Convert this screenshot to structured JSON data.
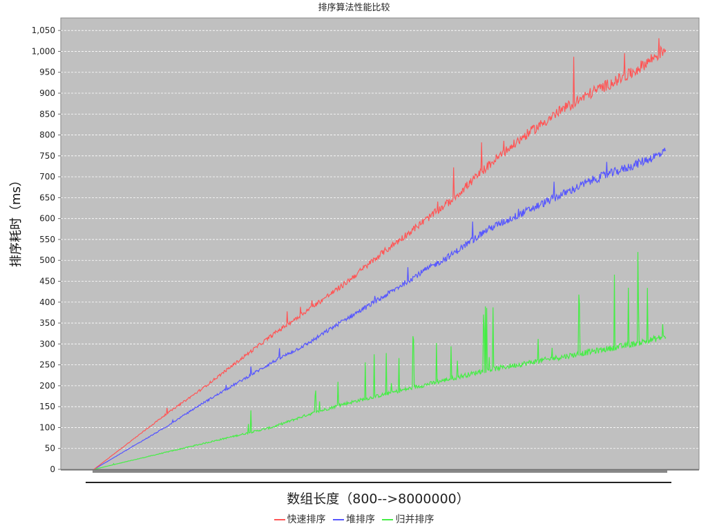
{
  "chart_data": {
    "type": "line",
    "title": "排序算法性能比较",
    "xlabel": "数组长度（800-->8000000）",
    "ylabel": "排序耗时（ms）",
    "ylim": [
      0,
      1080
    ],
    "yticks": [
      0,
      50,
      100,
      150,
      200,
      250,
      300,
      350,
      400,
      450,
      500,
      550,
      600,
      650,
      700,
      750,
      800,
      850,
      900,
      950,
      1000,
      1050
    ],
    "ytick_labels": [
      "0",
      "50",
      "100",
      "150",
      "200",
      "250",
      "300",
      "350",
      "400",
      "450",
      "500",
      "550",
      "600",
      "650",
      "700",
      "750",
      "800",
      "850",
      "900",
      "950",
      "1,000",
      "1,050"
    ],
    "x_range": [
      800,
      8000000
    ],
    "grid": true,
    "legend_position": "bottom",
    "background_color": "#c0c0c0",
    "series": [
      {
        "name": "快速排序",
        "color": "#ff5555",
        "x": [
          800,
          500000,
          1000000,
          1500000,
          2000000,
          2500000,
          3000000,
          3500000,
          4000000,
          4500000,
          5000000,
          5500000,
          6000000,
          6500000,
          7000000,
          7500000,
          8000000
        ],
        "values": [
          0,
          65,
          130,
          190,
          255,
          320,
          380,
          440,
          510,
          575,
          640,
          720,
          790,
          850,
          900,
          940,
          1000
        ]
      },
      {
        "name": "堆排序",
        "color": "#5555ff",
        "x": [
          800,
          500000,
          1000000,
          1500000,
          2000000,
          2500000,
          3000000,
          3500000,
          4000000,
          4500000,
          5000000,
          5500000,
          6000000,
          6500000,
          7000000,
          7500000,
          8000000
        ],
        "values": [
          0,
          50,
          100,
          155,
          205,
          255,
          300,
          355,
          405,
          460,
          510,
          570,
          610,
          650,
          690,
          720,
          755
        ]
      },
      {
        "name": "归并排序",
        "color": "#44ee44",
        "x": [
          800,
          500000,
          1000000,
          1500000,
          2000000,
          2500000,
          3000000,
          3500000,
          4000000,
          4500000,
          5000000,
          5500000,
          6000000,
          6500000,
          7000000,
          7500000,
          8000000
        ],
        "values": [
          0,
          20,
          40,
          60,
          80,
          100,
          130,
          155,
          175,
          195,
          215,
          235,
          250,
          265,
          280,
          295,
          315
        ]
      }
    ]
  }
}
